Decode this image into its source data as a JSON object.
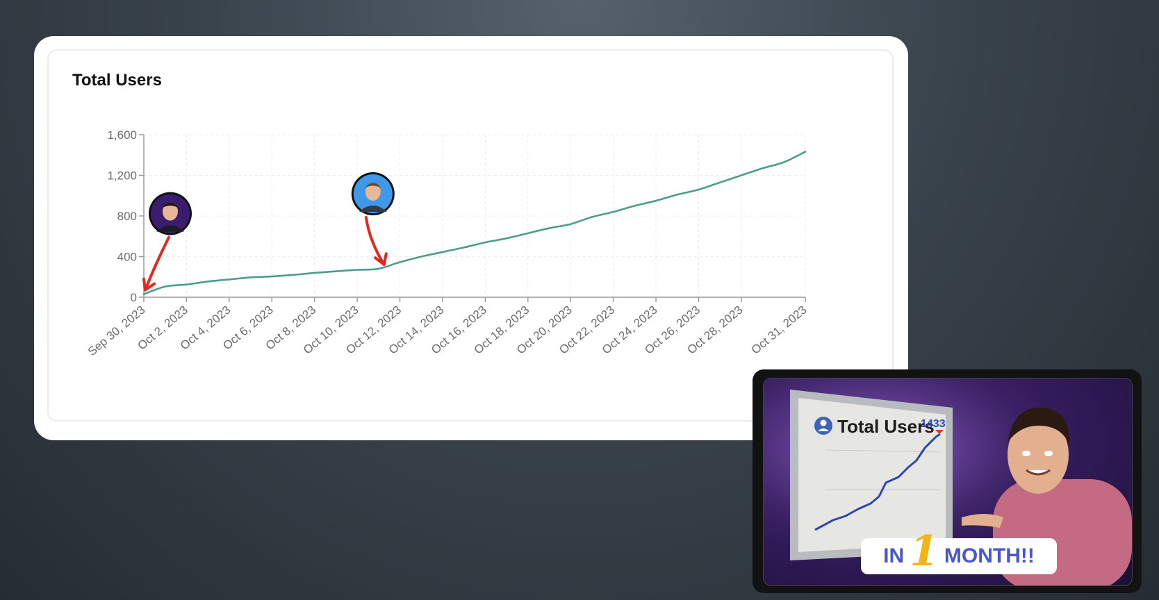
{
  "chart_data": {
    "type": "line",
    "title": "Total Users",
    "xlabel": "",
    "ylabel": "",
    "ylim": [
      0,
      1600
    ],
    "yticks": [
      0,
      400,
      800,
      1200,
      1600
    ],
    "ytick_labels": [
      "0",
      "400",
      "800",
      "1,200",
      "1,600"
    ],
    "xlim": [
      "2023-09-30",
      "2023-10-31"
    ],
    "xticks": [
      "2023-09-30",
      "2023-10-02",
      "2023-10-04",
      "2023-10-06",
      "2023-10-08",
      "2023-10-10",
      "2023-10-12",
      "2023-10-14",
      "2023-10-16",
      "2023-10-18",
      "2023-10-20",
      "2023-10-22",
      "2023-10-24",
      "2023-10-26",
      "2023-10-28",
      "2023-10-31"
    ],
    "xtick_labels": [
      "Sep 30, 2023",
      "Oct 2, 2023",
      "Oct 4, 2023",
      "Oct 6, 2023",
      "Oct 8, 2023",
      "Oct 10, 2023",
      "Oct 12, 2023",
      "Oct 14, 2023",
      "Oct 16, 2023",
      "Oct 18, 2023",
      "Oct 20, 2023",
      "Oct 22, 2023",
      "Oct 24, 2023",
      "Oct 26, 2023",
      "Oct 28, 2023",
      "Oct 31, 2023"
    ],
    "grid": true,
    "line_color": "#4a9e8a",
    "series": [
      {
        "x": [
          "2023-09-30",
          "2023-10-01",
          "2023-10-02",
          "2023-10-03",
          "2023-10-04",
          "2023-10-05",
          "2023-10-06",
          "2023-10-07",
          "2023-10-08",
          "2023-10-09",
          "2023-10-10",
          "2023-10-11",
          "2023-10-12",
          "2023-10-13",
          "2023-10-14",
          "2023-10-15",
          "2023-10-16",
          "2023-10-17",
          "2023-10-18",
          "2023-10-19",
          "2023-10-20",
          "2023-10-21",
          "2023-10-22",
          "2023-10-23",
          "2023-10-24",
          "2023-10-25",
          "2023-10-26",
          "2023-10-27",
          "2023-10-28",
          "2023-10-29",
          "2023-10-30",
          "2023-10-31"
        ],
        "values": [
          30,
          105,
          125,
          155,
          175,
          195,
          205,
          220,
          240,
          255,
          270,
          280,
          345,
          400,
          445,
          490,
          540,
          580,
          630,
          680,
          720,
          790,
          840,
          900,
          950,
          1010,
          1060,
          1130,
          1200,
          1270,
          1330,
          1433
        ]
      }
    ],
    "annotations": [
      {
        "x": "2023-09-30",
        "type": "avatar-arrow"
      },
      {
        "x": "2023-10-11",
        "type": "avatar-arrow"
      }
    ]
  },
  "thumbnail": {
    "board_title": "Total Users",
    "board_value": "1433",
    "badge_prefix": "IN",
    "badge_number": "1",
    "badge_suffix": "MONTH!!"
  },
  "colors": {
    "line": "#4a9e8a",
    "arrow": "#e02a1f",
    "badge_text": "#4b57c9",
    "badge_number": "#f2b516"
  }
}
